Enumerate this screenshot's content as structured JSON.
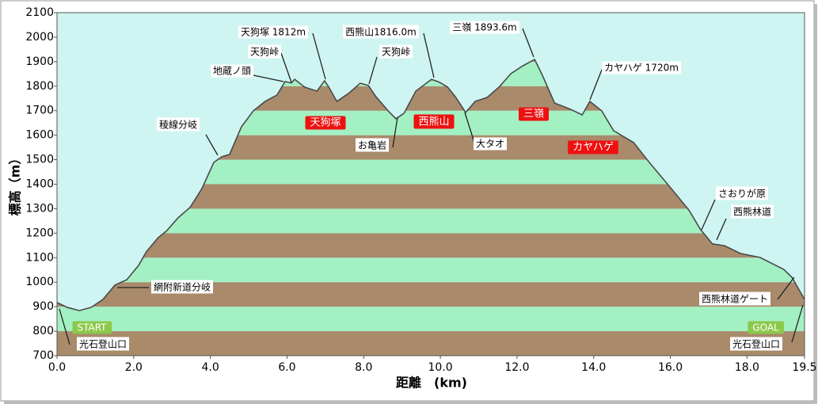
{
  "chart_data": {
    "type": "elevation-profile",
    "x_label": "距離　(km)",
    "y_label": "標高（m）",
    "x": [
      0.0,
      0.27,
      0.58,
      0.89,
      1.2,
      1.51,
      1.82,
      2.13,
      2.33,
      2.64,
      2.85,
      3.16,
      3.47,
      3.78,
      4.09,
      4.3,
      4.5,
      4.81,
      5.12,
      5.43,
      5.74,
      5.95,
      6.11,
      6.2,
      6.46,
      6.78,
      6.98,
      7.09,
      7.3,
      7.6,
      7.91,
      8.12,
      8.32,
      8.64,
      8.84,
      9.05,
      9.36,
      9.77,
      9.98,
      10.19,
      10.39,
      10.66,
      10.91,
      11.22,
      11.53,
      11.84,
      12.15,
      12.46,
      12.66,
      12.98,
      13.39,
      13.7,
      13.9,
      14.21,
      14.52,
      15.04,
      15.45,
      15.97,
      16.48,
      16.79,
      17.1,
      17.41,
      17.83,
      18.34,
      18.96,
      19.17,
      19.5
    ],
    "values": [
      917,
      897,
      884,
      897,
      930,
      988,
      1010,
      1069,
      1124,
      1182,
      1208,
      1263,
      1305,
      1382,
      1489,
      1512,
      1521,
      1634,
      1699,
      1738,
      1764,
      1819,
      1813,
      1828,
      1796,
      1780,
      1822,
      1796,
      1738,
      1770,
      1812,
      1803,
      1757,
      1699,
      1667,
      1689,
      1780,
      1828,
      1816,
      1796,
      1757,
      1693,
      1738,
      1754,
      1796,
      1851,
      1883,
      1909,
      1845,
      1731,
      1706,
      1683,
      1738,
      1699,
      1618,
      1570,
      1489,
      1392,
      1295,
      1214,
      1156,
      1149,
      1117,
      1101,
      1052,
      1020,
      930
    ],
    "line_color": "#4a4a4a",
    "band_colors": [
      "#a98a6b",
      "#a3f0c3"
    ],
    "background": "#cff5f2",
    "xlim": [
      0,
      19.5
    ],
    "ylim": [
      700,
      2100
    ],
    "xticks": [
      {
        "value": 0,
        "label": "0.0"
      },
      {
        "value": 2,
        "label": "2.0"
      },
      {
        "value": 4,
        "label": "4.0"
      },
      {
        "value": 6,
        "label": "6.0"
      },
      {
        "value": 8,
        "label": "8.0"
      },
      {
        "value": 10,
        "label": "10.0"
      },
      {
        "value": 12,
        "label": "12.0"
      },
      {
        "value": 14,
        "label": "14.0"
      },
      {
        "value": 16,
        "label": "16.0"
      },
      {
        "value": 18,
        "label": "18.0"
      },
      19.5
    ],
    "yticks": [
      700,
      800,
      900,
      1000,
      1100,
      1200,
      1300,
      1400,
      1500,
      1600,
      1700,
      1800,
      1900,
      2000,
      2100
    ],
    "annotations": [
      "天狗塚 1812m",
      "天狗峠",
      "地蔵ノ頭",
      "西熊山1816.0m",
      "天狗峠",
      "三嶺 1893.6m",
      "カヤハゲ 1720m",
      "稜線分岐",
      "お亀岩",
      "大タオ",
      "さおりが原",
      "西熊林道",
      "網附新道分岐",
      "西熊林道ゲート",
      "光石登山口",
      "光石登山口"
    ],
    "peak_labels": [
      "天狗塚",
      "西熊山",
      "三嶺",
      "カヤハゲ"
    ],
    "endpoint_labels": [
      "START",
      "GOAL"
    ]
  }
}
